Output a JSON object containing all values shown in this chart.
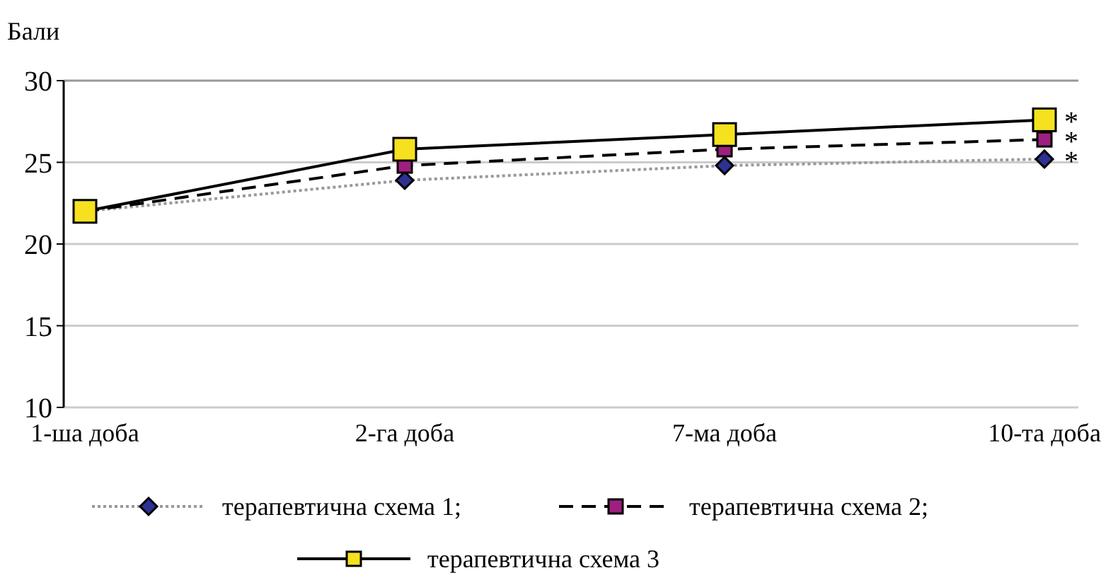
{
  "chart_data": {
    "type": "line",
    "ylabel": "Бали",
    "categories": [
      "1-ша доба",
      "2-га доба",
      "7-ма доба",
      "10-та доба"
    ],
    "series": [
      {
        "name": "терапевтична схема 1;",
        "color": "#2e3192",
        "values": [
          22,
          23.9,
          24.8,
          25.2
        ],
        "marker": "diamond",
        "line_style": "dotted"
      },
      {
        "name": "терапевтична схема 2;",
        "color": "#9e1f7f",
        "values": [
          22,
          24.8,
          25.8,
          26.4
        ],
        "marker": "square",
        "line_style": "dashed"
      },
      {
        "name": "терапевтична схема 3",
        "color": "#f5e11e",
        "values": [
          22,
          25.8,
          26.7,
          27.6
        ],
        "marker": "square",
        "line_style": "solid"
      }
    ],
    "ylim": [
      10,
      30
    ],
    "yticks": [
      10,
      15,
      20,
      25,
      30
    ],
    "grid": "y",
    "legend": "bottom",
    "annotations": [
      {
        "text": "*",
        "x": "10-та доба",
        "y": 27.6
      },
      {
        "text": "*",
        "x": "10-та доба",
        "y": 26.4
      },
      {
        "text": "*",
        "x": "10-та доба",
        "y": 25.2
      }
    ]
  }
}
